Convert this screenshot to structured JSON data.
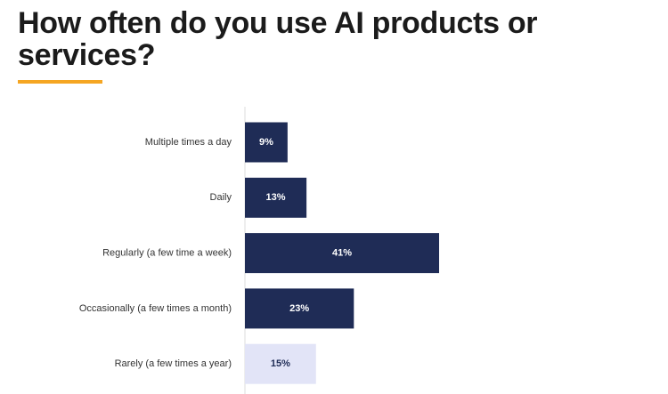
{
  "chart_data": {
    "type": "barh",
    "title": "How often do you use AI products or services?",
    "categories": [
      "Multiple times a day",
      "Daily",
      "Regularly (a few time a week)",
      "Occasionally (a few times  a month)",
      "Rarely (a few times a year)"
    ],
    "values": [
      9,
      13,
      41,
      23,
      15
    ],
    "value_labels": [
      "9%",
      "13%",
      "41%",
      "23%",
      "15%"
    ],
    "colors": [
      "#1f2c56",
      "#1f2c56",
      "#1f2c56",
      "#1f2c56",
      "#e2e4f7"
    ]
  }
}
